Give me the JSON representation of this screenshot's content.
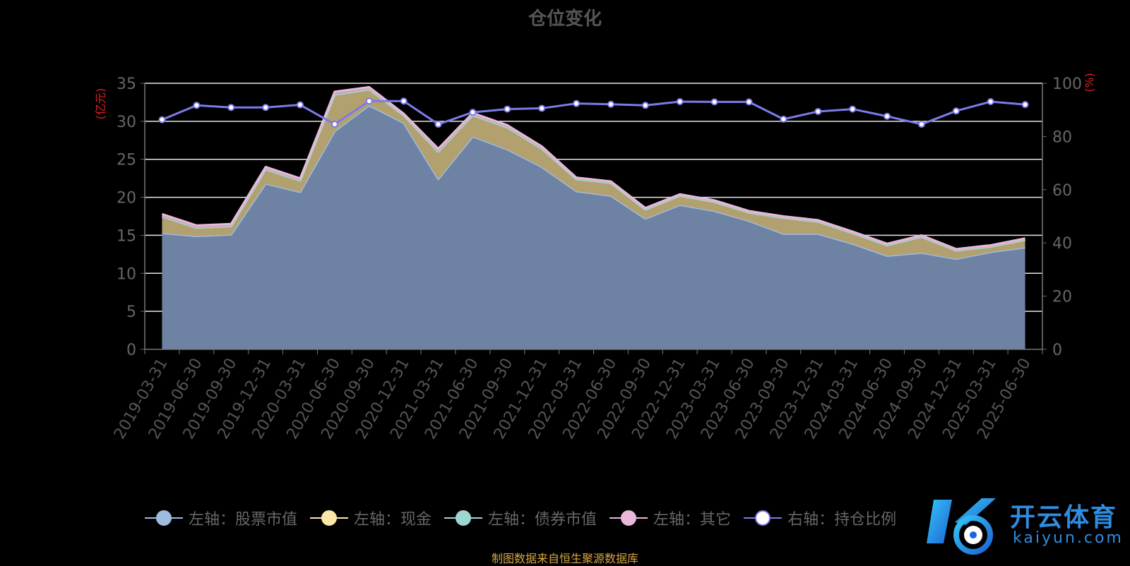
{
  "chart_data": {
    "type": "area",
    "title": "仓位变化",
    "y_left_unit": "(亿元)",
    "y_right_unit": "(%)",
    "y_left_range": [
      0,
      35
    ],
    "y_left_ticks": [
      0,
      5,
      10,
      15,
      20,
      25,
      30,
      35
    ],
    "y_right_range": [
      0,
      100
    ],
    "y_right_ticks": [
      0,
      20,
      40,
      60,
      80,
      100
    ],
    "grid": true,
    "legend_position": "bottom",
    "categories": [
      "2019-03-31",
      "2019-06-30",
      "2019-09-30",
      "2019-12-31",
      "2020-03-31",
      "2020-06-30",
      "2020-09-30",
      "2020-12-31",
      "2021-03-31",
      "2021-06-30",
      "2021-09-30",
      "2021-12-31",
      "2022-03-31",
      "2022-06-30",
      "2022-09-30",
      "2022-12-31",
      "2023-03-31",
      "2023-06-30",
      "2023-09-30",
      "2023-12-31",
      "2024-03-31",
      "2024-06-30",
      "2024-09-30",
      "2024-12-31",
      "2025-03-31",
      "2025-06-30"
    ],
    "series": [
      {
        "name": "左轴：股票市值",
        "axis": "left",
        "type": "area",
        "color": "#9fbbe0",
        "fill": "#6e83a3",
        "values": [
          15.3,
          14.9,
          15.1,
          21.8,
          20.7,
          28.7,
          32.1,
          29.8,
          22.4,
          28.0,
          26.3,
          24.0,
          20.8,
          20.2,
          17.2,
          19.0,
          18.2,
          16.9,
          15.2,
          15.2,
          13.9,
          12.3,
          12.7,
          11.9,
          12.8,
          13.4
        ]
      },
      {
        "name": "左轴：现金",
        "axis": "left",
        "type": "area",
        "color": "#fbe8a6",
        "fill": "#b2a06f",
        "values": [
          2.2,
          1.1,
          1.1,
          1.9,
          1.5,
          4.8,
          2.1,
          1.0,
          3.6,
          2.8,
          2.9,
          2.4,
          1.6,
          1.7,
          1.2,
          1.2,
          1.2,
          1.1,
          2.1,
          1.6,
          1.4,
          1.4,
          2.1,
          1.1,
          0.7,
          1.0
        ]
      },
      {
        "name": "左轴：债券市值",
        "axis": "left",
        "type": "area",
        "color": "#9ed6d2",
        "fill": "#7aa8a4",
        "values": [
          0,
          0,
          0,
          0,
          0,
          0,
          0,
          0,
          0,
          0,
          0,
          0,
          0,
          0,
          0,
          0,
          0,
          0,
          0,
          0,
          0,
          0,
          0,
          0,
          0,
          0
        ]
      },
      {
        "name": "左轴：其它",
        "axis": "left",
        "type": "area",
        "color": "#eab8d8",
        "fill": "#c9a3b8",
        "values": [
          0.3,
          0.3,
          0.3,
          0.3,
          0.3,
          0.4,
          0.3,
          0.2,
          0.4,
          0.3,
          0.3,
          0.3,
          0.2,
          0.2,
          0.2,
          0.2,
          0.2,
          0.2,
          0.2,
          0.2,
          0.2,
          0.2,
          0.2,
          0.2,
          0.2,
          0.2
        ]
      },
      {
        "name": "右轴：持仓比例",
        "axis": "right",
        "type": "line",
        "color": "#7b7bea",
        "values": [
          86.3,
          91.7,
          90.9,
          90.9,
          91.9,
          84.6,
          93.3,
          93.3,
          84.6,
          89.1,
          90.3,
          90.6,
          92.4,
          92.1,
          91.7,
          93.1,
          93.0,
          93.0,
          86.5,
          89.4,
          90.3,
          87.6,
          84.6,
          89.6,
          93.1,
          92.0
        ]
      }
    ]
  },
  "legend": [
    {
      "label": "左轴：股票市值",
      "line": "#9fbbe0",
      "dot": "#9fbbe0"
    },
    {
      "label": "左轴：现金",
      "line": "#fbe8a6",
      "dot": "#fbe8a6"
    },
    {
      "label": "左轴：债券市值",
      "line": "#9ed6d2",
      "dot": "#9ed6d2"
    },
    {
      "label": "左轴：其它",
      "line": "#eab8d8",
      "dot": "#eab8d8"
    },
    {
      "label": "右轴：持仓比例",
      "line": "#7b7bea",
      "dot": "#ffffff"
    }
  ],
  "footnote": "制图数据来自恒生聚源数据库",
  "watermark": {
    "text_cn": "开云体育",
    "text_en": "kaiyun.com"
  }
}
